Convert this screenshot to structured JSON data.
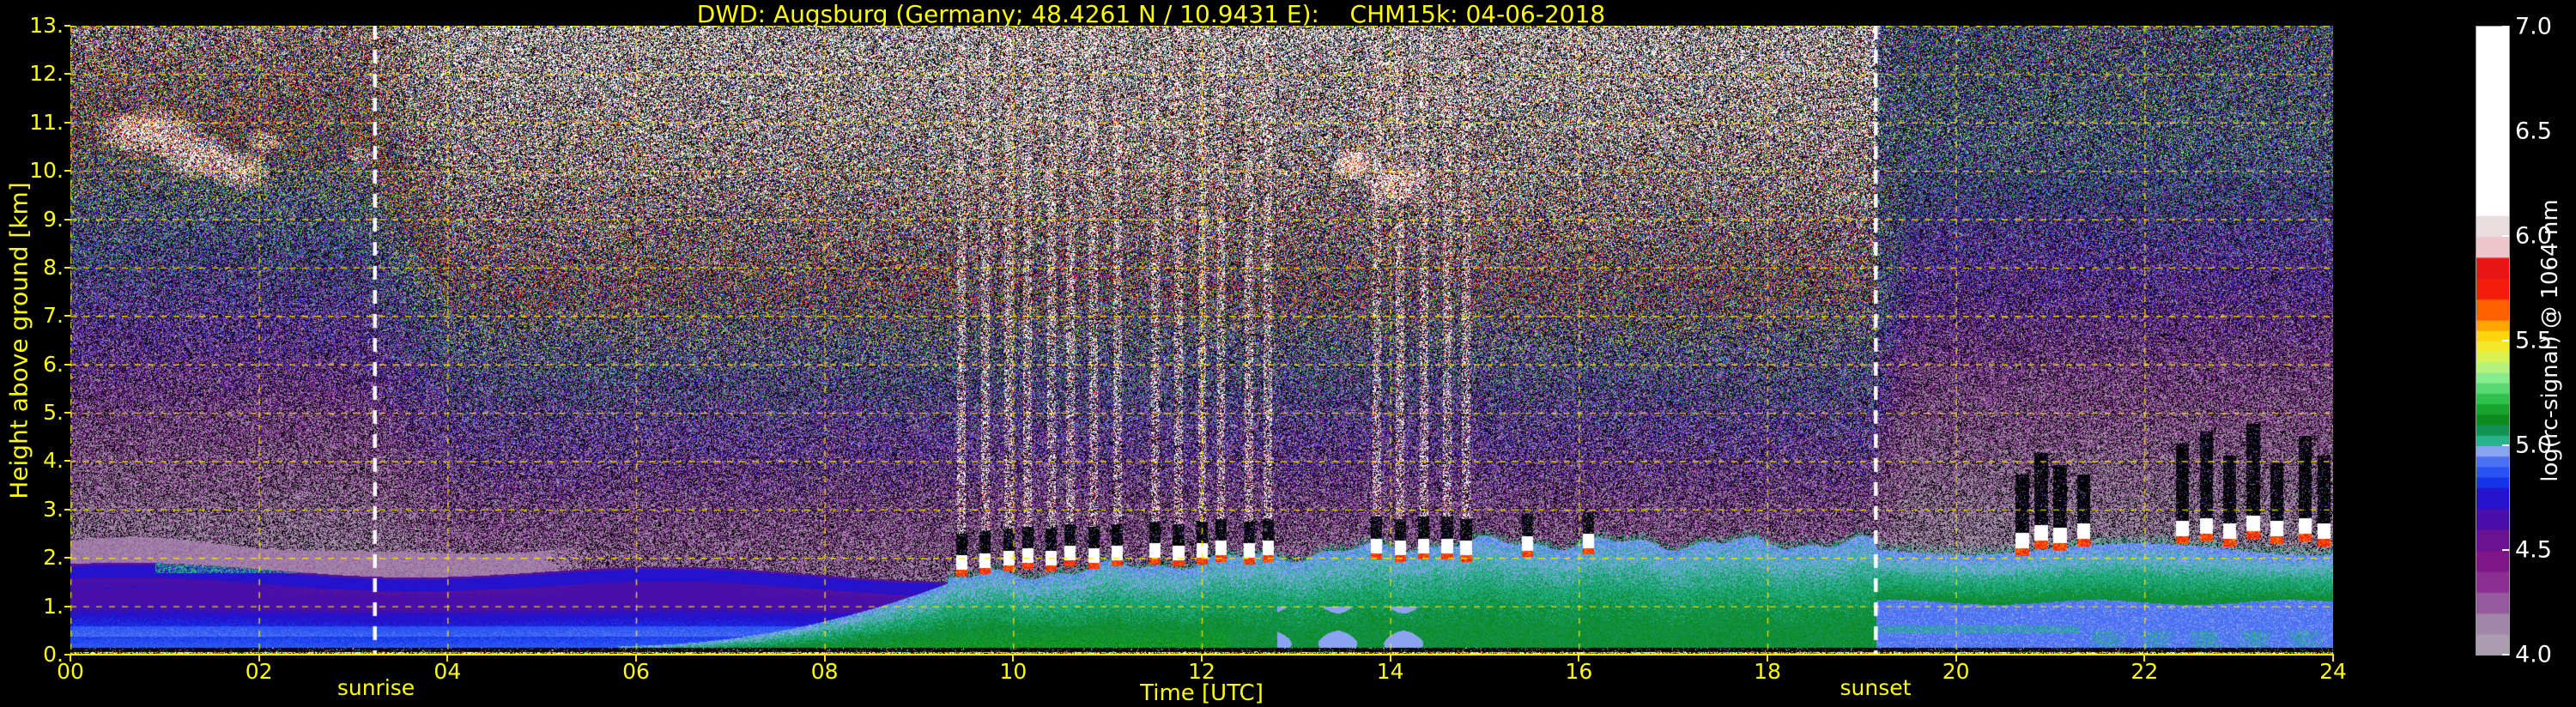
{
  "title": "DWD: Augsburg (Germany; 48.4261 N / 10.9431 E):    CHM15k: 04-06-2018",
  "axes": {
    "x": {
      "label": "Time [UTC]",
      "ticks": [
        "00",
        "02",
        "04",
        "06",
        "08",
        "10",
        "12",
        "14",
        "16",
        "18",
        "20",
        "22",
        "24"
      ],
      "range_hours": [
        0,
        24
      ]
    },
    "y": {
      "label": "Height above ground [km]",
      "ticks": [
        "13.",
        "12.",
        "11.",
        "10.",
        "9.",
        "8.",
        "7.",
        "6.",
        "5.",
        "4.",
        "3.",
        "2.",
        "1.",
        "0."
      ],
      "range_km": [
        0,
        13
      ]
    }
  },
  "annotations": {
    "sunrise_label": "sunrise",
    "sunset_label": "sunset"
  },
  "colorbar": {
    "label": "log(rc-signal) @ 1064 nm",
    "ticks": [
      "7.0",
      "6.5",
      "6.0",
      "5.5",
      "5.0",
      "4.5",
      "4.0"
    ],
    "tick_values": [
      7.0,
      6.5,
      6.0,
      5.5,
      5.0,
      4.5,
      4.0
    ],
    "range": [
      4.0,
      7.0
    ]
  },
  "chart_data": {
    "type": "heatmap",
    "title": "DWD: Augsburg (Germany; 48.4261 N / 10.9431 E):    CHM15k: 04-06-2018",
    "site": "Augsburg (Germany)",
    "latitude": "48.4261 N",
    "longitude": "10.9431 E",
    "instrument": "CHM15k",
    "date": "04-06-2018",
    "xlabel": "Time [UTC]",
    "ylabel": "Height above ground [km]",
    "zlabel": "log(rc-signal) @ 1064 nm",
    "xlim": [
      0,
      24
    ],
    "ylim": [
      0,
      13
    ],
    "zlim": [
      4.0,
      7.0
    ],
    "grid": "yellow dashed, 2 h and 1 km spacing",
    "sunrise_utc": 3.23,
    "sunset_utc": 19.15,
    "colormap": [
      [
        4.0,
        "#ab9db0"
      ],
      [
        4.1,
        "#a286a9"
      ],
      [
        4.2,
        "#97599d"
      ],
      [
        4.3,
        "#8c2f92"
      ],
      [
        4.4,
        "#7f1588"
      ],
      [
        4.5,
        "#691390"
      ],
      [
        4.6,
        "#4810a8"
      ],
      [
        4.7,
        "#2412cc"
      ],
      [
        4.8,
        "#1634e8"
      ],
      [
        4.85,
        "#2b52f2"
      ],
      [
        4.9,
        "#4a70f3"
      ],
      [
        4.95,
        "#8aa4f2"
      ],
      [
        5.0,
        "#28b38a"
      ],
      [
        5.05,
        "#129355"
      ],
      [
        5.1,
        "#0d8a1d"
      ],
      [
        5.15,
        "#17a42e"
      ],
      [
        5.2,
        "#2fc14c"
      ],
      [
        5.25,
        "#57da71"
      ],
      [
        5.3,
        "#86ec8d"
      ],
      [
        5.35,
        "#b5f37e"
      ],
      [
        5.4,
        "#d8f254"
      ],
      [
        5.45,
        "#f2e92e"
      ],
      [
        5.5,
        "#ffd60d"
      ],
      [
        5.55,
        "#ffa400"
      ],
      [
        5.6,
        "#ff6000"
      ],
      [
        5.7,
        "#f21d0a"
      ],
      [
        5.8,
        "#e81616"
      ],
      [
        5.9,
        "#eec6cd"
      ],
      [
        6.0,
        "#eadde0"
      ],
      [
        6.1,
        "#ffffff"
      ]
    ],
    "phenomena": [
      "cirrus cloud patches 9.5-11.5 km between 00:15 and 03:10 UTC",
      "cirrus patches near 10 km between 13:30 and 14:30 UTC",
      "nocturnal stable/residual layer (blue) up to ~1.9 km before sunrise, capped by mauve band ~2.0-2.4 km",
      "thin elevated teal aerosol lens ~1.8 km between 01:00 and 03:30 UTC",
      "convective boundary layer (green) growing from ~06:00, reaching ~2 km around midday",
      "cumulus clouds (white/red cores, black attenuation above, bright noise streaks to plot top) 09:30-15:00 UTC",
      "broken clouds ~2.2-2.6 km with deep attenuation columns after 20:30 UTC",
      "speckle noise increasing with altitude and with daytime solar background",
      "white dashed vertical lines mark sunrise and sunset"
    ],
    "features": {
      "nocturnal_layer": {
        "t_end": 9.5,
        "top_km": 1.78,
        "cap_thickness_km": 0.48,
        "cap_value": 4.12,
        "value_surface": 4.9,
        "cap_fade_t": 5.5,
        "teal_lens": {
          "t0": 0.9,
          "t1": 3.6,
          "h0": 1.68,
          "h1": 1.93,
          "value": 5.0
        }
      },
      "convective_layer": {
        "t_start": 5.8,
        "growth_t": 9.3,
        "max_top_km": 2.3,
        "value": 5.16
      },
      "evening_layer": {
        "t_start": 19.15,
        "base_km": 1.08,
        "top_km": 2.18,
        "value": 5.1,
        "subcloud_value": 4.93
      },
      "cumulus_clouds": [
        {
          "t": 9.45,
          "base_km": 1.75,
          "streak": 1
        },
        {
          "t": 9.7,
          "base_km": 1.8,
          "streak": 1
        },
        {
          "t": 9.95,
          "base_km": 1.85,
          "streak": 1
        },
        {
          "t": 10.15,
          "base_km": 1.9,
          "streak": 1
        },
        {
          "t": 10.4,
          "base_km": 1.85,
          "streak": 1
        },
        {
          "t": 10.6,
          "base_km": 1.95,
          "streak": 1
        },
        {
          "t": 10.85,
          "base_km": 1.9,
          "streak": 1
        },
        {
          "t": 11.1,
          "base_km": 1.95,
          "streak": 1
        },
        {
          "t": 11.5,
          "base_km": 2.0,
          "streak": 1
        },
        {
          "t": 11.75,
          "base_km": 1.95,
          "streak": 1
        },
        {
          "t": 12.0,
          "base_km": 2.0,
          "streak": 1
        },
        {
          "t": 12.2,
          "base_km": 2.05,
          "streak": 1
        },
        {
          "t": 12.5,
          "base_km": 2.0,
          "streak": 1
        },
        {
          "t": 12.7,
          "base_km": 2.05,
          "streak": 1
        },
        {
          "t": 13.85,
          "base_km": 2.1,
          "streak": 1
        },
        {
          "t": 14.1,
          "base_km": 2.05,
          "streak": 1
        },
        {
          "t": 14.35,
          "base_km": 2.1,
          "streak": 1
        },
        {
          "t": 14.6,
          "base_km": 2.1,
          "streak": 1
        },
        {
          "t": 14.8,
          "base_km": 2.05,
          "streak": 1
        },
        {
          "t": 15.45,
          "base_km": 2.15,
          "streak": 0
        },
        {
          "t": 16.1,
          "base_km": 2.2,
          "streak": 0
        }
      ],
      "evening_clouds": [
        {
          "t": 20.7,
          "base_km": 2.2,
          "attn_km": 1.2
        },
        {
          "t": 20.9,
          "base_km": 2.35,
          "attn_km": 1.5
        },
        {
          "t": 21.1,
          "base_km": 2.3,
          "attn_km": 1.3
        },
        {
          "t": 21.35,
          "base_km": 2.4,
          "attn_km": 1.0
        },
        {
          "t": 22.4,
          "base_km": 2.45,
          "attn_km": 1.6
        },
        {
          "t": 22.65,
          "base_km": 2.5,
          "attn_km": 1.8
        },
        {
          "t": 22.9,
          "base_km": 2.4,
          "attn_km": 1.4
        },
        {
          "t": 23.15,
          "base_km": 2.55,
          "attn_km": 1.9
        },
        {
          "t": 23.4,
          "base_km": 2.45,
          "attn_km": 1.2
        },
        {
          "t": 23.7,
          "base_km": 2.5,
          "attn_km": 1.7
        },
        {
          "t": 23.9,
          "base_km": 2.4,
          "attn_km": 1.4
        }
      ],
      "cirrus_patches": [
        {
          "t": 0.85,
          "h": 10.8,
          "rt": 0.6,
          "rh": 0.55,
          "density": 0.7
        },
        {
          "t": 1.35,
          "h": 10.3,
          "rt": 0.45,
          "rh": 0.5,
          "density": 0.65
        },
        {
          "t": 1.8,
          "h": 10.0,
          "rt": 0.35,
          "rh": 0.45,
          "density": 0.55
        },
        {
          "t": 2.05,
          "h": 10.6,
          "rt": 0.25,
          "rh": 0.3,
          "density": 0.4
        },
        {
          "t": 3.05,
          "h": 10.3,
          "rt": 0.18,
          "rh": 0.3,
          "density": 0.35
        },
        {
          "t": 11.15,
          "h": 10.45,
          "rt": 0.12,
          "rh": 0.2,
          "density": 0.3
        },
        {
          "t": 13.6,
          "h": 10.15,
          "rt": 0.22,
          "rh": 0.35,
          "density": 0.8
        },
        {
          "t": 14.05,
          "h": 9.7,
          "rt": 0.35,
          "rh": 0.5,
          "density": 0.7
        }
      ],
      "noise": {
        "black_fraction": 0.31,
        "amp_min": 0.22,
        "amp_max": 3.1,
        "day_boost": 0.55,
        "post_sunset_damp": 0.8
      }
    }
  }
}
